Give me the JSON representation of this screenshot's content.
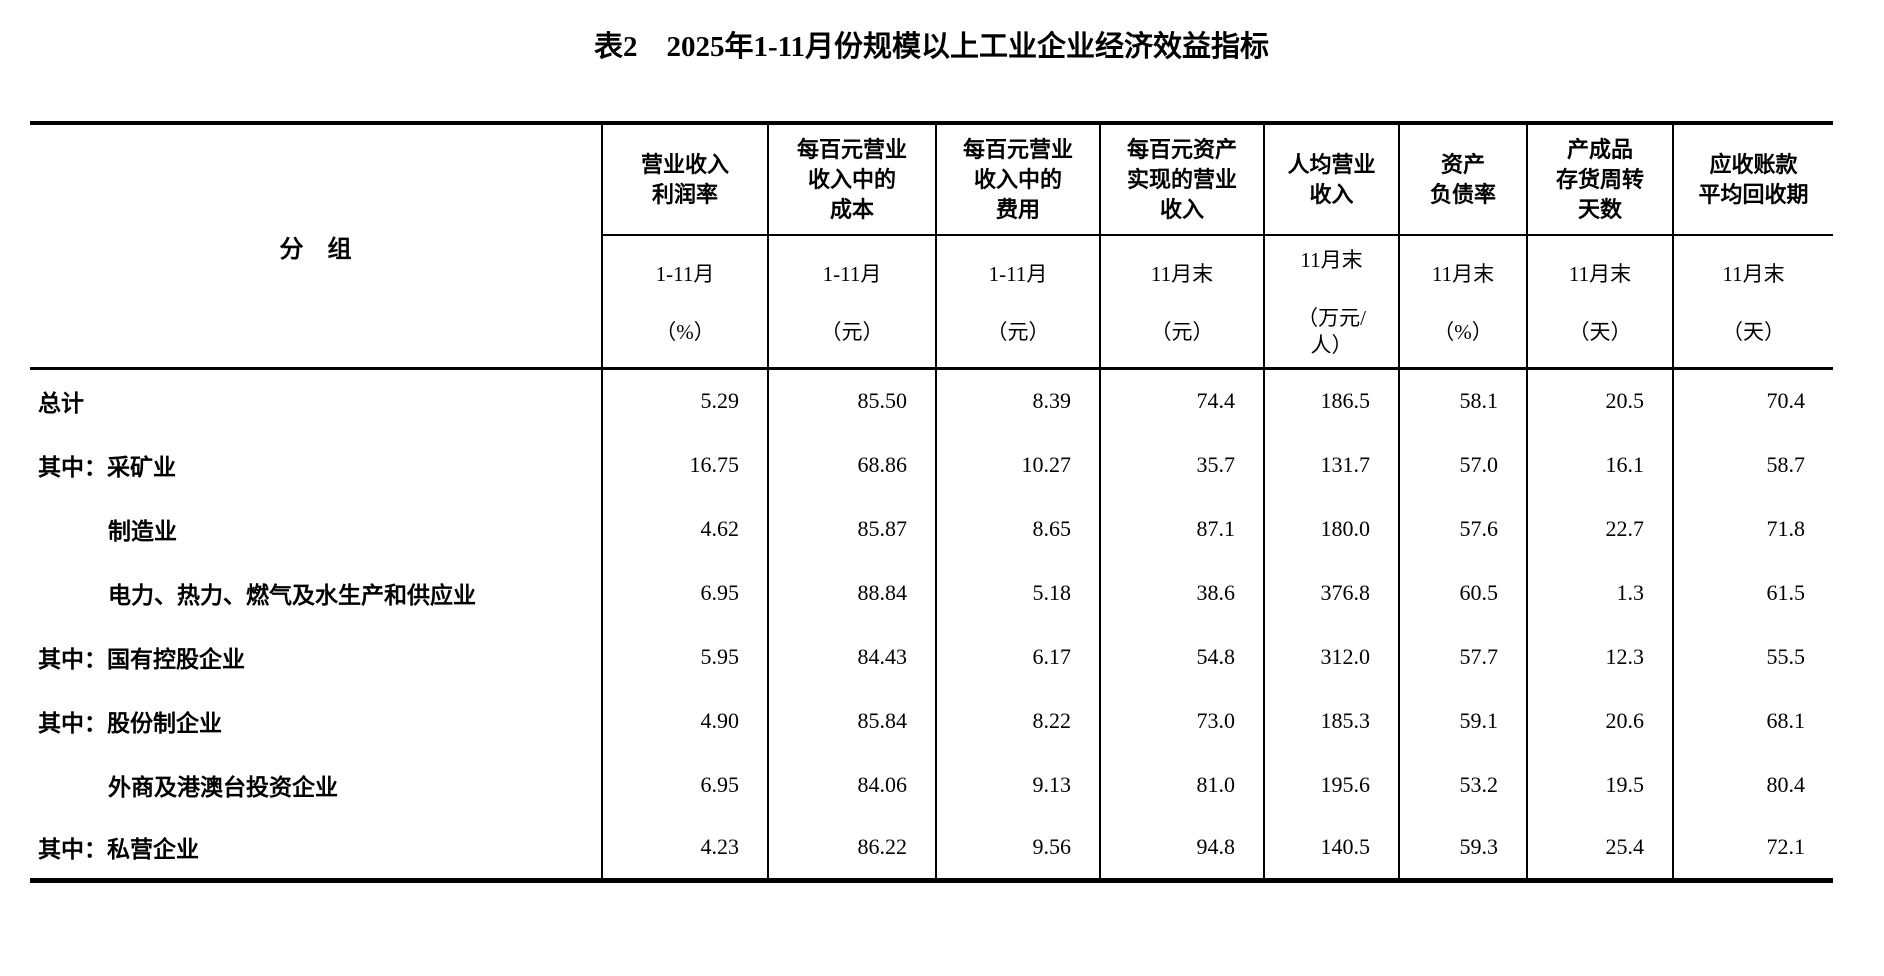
{
  "title": "表2　2025年1-11月份规模以上工业企业经济效益指标",
  "table": {
    "group_header": "分　组",
    "columns": [
      {
        "title": "营业收入\n利润率",
        "period": "1-11月",
        "unit": "（%）"
      },
      {
        "title": "每百元营业\n收入中的\n成本",
        "period": "1-11月",
        "unit": "（元）"
      },
      {
        "title": "每百元营业\n收入中的\n费用",
        "period": "1-11月",
        "unit": "（元）"
      },
      {
        "title": "每百元资产\n实现的营业\n收入",
        "period": "11月末",
        "unit": "（元）"
      },
      {
        "title": "人均营业\n收入",
        "period": "11月末",
        "unit": "（万元/\n人）"
      },
      {
        "title": "资产\n负债率",
        "period": "11月末",
        "unit": "（%）"
      },
      {
        "title": "产成品\n存货周转\n天数",
        "period": "11月末",
        "unit": "（天）"
      },
      {
        "title": "应收账款\n平均回收期",
        "period": "11月末",
        "unit": "（天）"
      }
    ],
    "rows": [
      {
        "label": "总计",
        "indent": false,
        "values": [
          "5.29",
          "85.50",
          "8.39",
          "74.4",
          "186.5",
          "58.1",
          "20.5",
          "70.4"
        ]
      },
      {
        "label": "其中：采矿业",
        "indent": false,
        "values": [
          "16.75",
          "68.86",
          "10.27",
          "35.7",
          "131.7",
          "57.0",
          "16.1",
          "58.7"
        ]
      },
      {
        "label": "制造业",
        "indent": true,
        "values": [
          "4.62",
          "85.87",
          "8.65",
          "87.1",
          "180.0",
          "57.6",
          "22.7",
          "71.8"
        ]
      },
      {
        "label": "电力、热力、燃气及水生产和供应业",
        "indent": true,
        "values": [
          "6.95",
          "88.84",
          "5.18",
          "38.6",
          "376.8",
          "60.5",
          "1.3",
          "61.5"
        ]
      },
      {
        "label": "其中：国有控股企业",
        "indent": false,
        "values": [
          "5.95",
          "84.43",
          "6.17",
          "54.8",
          "312.0",
          "57.7",
          "12.3",
          "55.5"
        ]
      },
      {
        "label": "其中：股份制企业",
        "indent": false,
        "values": [
          "4.90",
          "85.84",
          "8.22",
          "73.0",
          "185.3",
          "59.1",
          "20.6",
          "68.1"
        ]
      },
      {
        "label": "外商及港澳台投资企业",
        "indent": true,
        "values": [
          "6.95",
          "84.06",
          "9.13",
          "81.0",
          "195.6",
          "53.2",
          "19.5",
          "80.4"
        ]
      },
      {
        "label": "其中：私营企业",
        "indent": false,
        "values": [
          "4.23",
          "86.22",
          "9.56",
          "94.8",
          "140.5",
          "59.3",
          "25.4",
          "72.1"
        ]
      }
    ]
  }
}
